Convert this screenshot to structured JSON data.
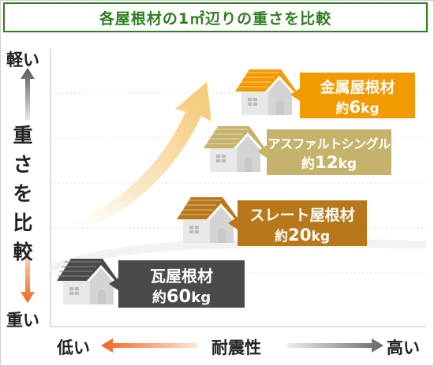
{
  "title": "各屋根材の1㎡辺りの重さを比較",
  "axis": {
    "light": "軽い",
    "heavy": "重い",
    "vertical": "重さを比較",
    "low": "低い",
    "middle": "耐震性",
    "high": "高い"
  },
  "colors": {
    "title": "#2e7d1f",
    "metal": "#f29a00",
    "asphalt": "#c5b36c",
    "slate": "#b8781a",
    "tile": "#4a4a4a",
    "arrow_light": "#f5e6c8",
    "arrow_orange": "#f0651e"
  },
  "chart_data": {
    "type": "table",
    "title": "各屋根材の1㎡辺りの重さを比較",
    "ylabel": "重さを比較",
    "xlabel": "耐震性",
    "items": [
      {
        "name": "金属屋根材",
        "prefix": "約",
        "value": "6",
        "unit": "kg"
      },
      {
        "name": "アスファルトシングル",
        "prefix": "約",
        "value": "12",
        "unit": "kg"
      },
      {
        "name": "スレート屋根材",
        "prefix": "約",
        "value": "20",
        "unit": "kg"
      },
      {
        "name": "瓦屋根材",
        "prefix": "約",
        "value": "60",
        "unit": "kg"
      }
    ]
  }
}
